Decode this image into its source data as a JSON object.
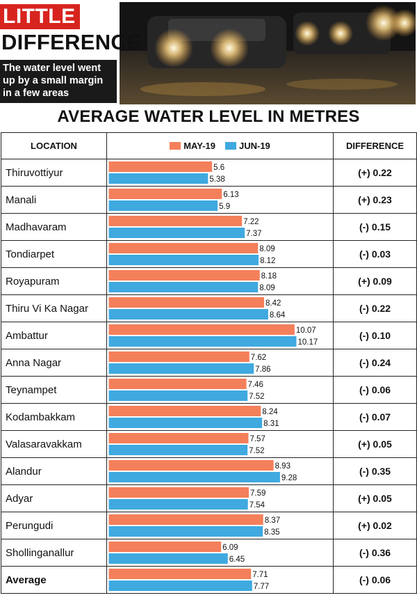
{
  "header": {
    "tag": "LITTLE",
    "headline": "DIFFERENCE",
    "dek": "The water level went up by a small margin in a few areas"
  },
  "table": {
    "col_location": "LOCATION",
    "col_difference": "DIFFERENCE"
  },
  "colors": {
    "may": "#f47f5b",
    "jun": "#3fa9e0"
  },
  "chart_data": {
    "type": "bar",
    "orientation": "horizontal",
    "title": "AVERAGE WATER LEVEL IN METRES",
    "categories": [
      "Thiruvottiyur",
      "Manali",
      "Madhavaram",
      "Tondiarpet",
      "Royapuram",
      "Thiru Vi Ka Nagar",
      "Ambattur",
      "Anna Nagar",
      "Teynampet",
      "Kodambakkam",
      "Valasaravakkam",
      "Alandur",
      "Adyar",
      "Perungudi",
      "Shollinganallur",
      "Average"
    ],
    "series": [
      {
        "name": "MAY-19",
        "values": [
          5.6,
          6.13,
          7.22,
          8.09,
          8.18,
          8.42,
          10.07,
          7.62,
          7.46,
          8.24,
          7.57,
          8.93,
          7.59,
          8.37,
          6.09,
          7.71
        ]
      },
      {
        "name": "JUN-19",
        "values": [
          5.38,
          5.9,
          7.37,
          8.12,
          8.09,
          8.64,
          10.17,
          7.86,
          7.52,
          8.31,
          7.52,
          9.28,
          7.54,
          8.35,
          6.45,
          7.77
        ]
      }
    ],
    "value_labels": {
      "may": [
        "5.6",
        "6.13",
        "7.22",
        "8.09",
        "8.18",
        "8.42",
        "10.07",
        "7.62",
        "7.46",
        "8.24",
        "7.57",
        "8.93",
        "7.59",
        "8.37",
        "6.09",
        "7.71"
      ],
      "jun": [
        "5.38",
        "5.9",
        "7.37",
        "8.12",
        "8.09",
        "8.64",
        "10.17",
        "7.86",
        "7.52",
        "8.31",
        "7.52",
        "9.28",
        "7.54",
        "8.35",
        "6.45",
        "7.77"
      ]
    },
    "difference": [
      "(+) 0.22",
      "(+) 0.23",
      "(-) 0.15",
      "(-) 0.03",
      "(+) 0.09",
      "(-) 0.22",
      "(-) 0.10",
      "(-) 0.24",
      "(-) 0.06",
      "(-) 0.07",
      "(+) 0.05",
      "(-) 0.35",
      "(+) 0.05",
      "(+) 0.02",
      "(-) 0.36",
      "(-) 0.06"
    ],
    "xlim": [
      0,
      10.17
    ],
    "legend": "top",
    "grid": false
  }
}
